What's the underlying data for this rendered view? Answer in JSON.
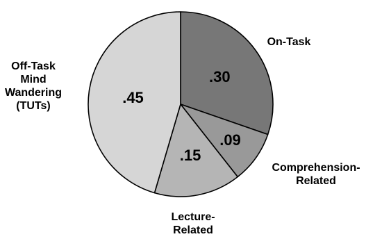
{
  "chart_data": {
    "type": "pie",
    "slices": [
      {
        "label_lines": [
          "On-Task"
        ],
        "value": 0.3,
        "value_label": ".30",
        "color": "#777777"
      },
      {
        "label_lines": [
          "Comprehension-",
          "Related"
        ],
        "value": 0.09,
        "value_label": ".09",
        "color": "#999999"
      },
      {
        "label_lines": [
          "Lecture-",
          "Related"
        ],
        "value": 0.15,
        "value_label": ".15",
        "color": "#b5b5b5"
      },
      {
        "label_lines": [
          "Off-Task",
          "Mind",
          "Wandering",
          "(TUTs)"
        ],
        "value": 0.45,
        "value_label": ".45",
        "color": "#d6d6d6"
      }
    ]
  }
}
